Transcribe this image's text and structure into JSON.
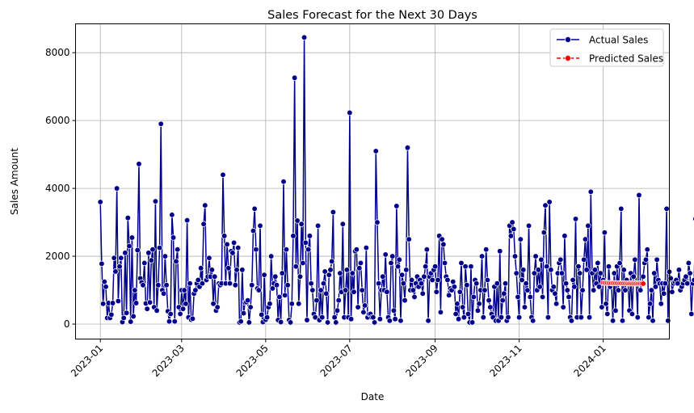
{
  "chart_data": {
    "type": "line",
    "title": "Sales Forecast for the Next 30 Days",
    "xlabel": "Date",
    "ylabel": "Sales Amount",
    "xlim": [
      "2022-12-14",
      "2024-02-18"
    ],
    "ylim": [
      -440,
      8850
    ],
    "grid": true,
    "legend_position": "top-right",
    "x_ticks": [
      "2023-01",
      "2023-03",
      "2023-05",
      "2023-07",
      "2023-09",
      "2023-11",
      "2024-01"
    ],
    "y_ticks": [
      0,
      2000,
      4000,
      6000,
      8000
    ],
    "series": [
      {
        "name": "Actual Sales",
        "color": "#00008b",
        "line_style": "solid",
        "marker": "circle",
        "x_start": "2023-01-01",
        "x_step_days": 1,
        "values": [
          3600,
          1780,
          600,
          1250,
          1100,
          180,
          620,
          180,
          280,
          620,
          1950,
          1550,
          4000,
          680,
          1700,
          1950,
          60,
          180,
          2100,
          330,
          3130,
          2300,
          70,
          2550,
          230,
          1000,
          620,
          2180,
          4720,
          1350,
          1230,
          1150,
          1800,
          610,
          450,
          2100,
          640,
          1880,
          2200,
          500,
          3620,
          400,
          1150,
          2250,
          5900,
          1000,
          900,
          2000,
          1150,
          380,
          80,
          300,
          3220,
          2550,
          80,
          1850,
          2200,
          500,
          300,
          1000,
          450,
          1000,
          600,
          3060,
          200,
          1200,
          130,
          160,
          900,
          1000,
          1200,
          1300,
          1100,
          1650,
          1200,
          2950,
          3500,
          1300,
          1400,
          1950,
          1400,
          1600,
          600,
          1400,
          400,
          500,
          1200,
          1150,
          1200,
          4400,
          2600,
          1200,
          2350,
          1650,
          1200,
          2150,
          2100,
          2400,
          1150,
          1600,
          2250,
          50,
          80,
          1600,
          320,
          630,
          650,
          700,
          50,
          500,
          1150,
          2750,
          3400,
          2200,
          1050,
          1000,
          2900,
          280,
          60,
          1450,
          130,
          200,
          500,
          600,
          2000,
          1050,
          1200,
          1400,
          1150,
          120,
          800,
          60,
          1500,
          4200,
          850,
          2200,
          1150,
          120,
          50,
          600,
          2600,
          7260,
          1700,
          3050,
          600,
          1400,
          2950,
          1800,
          8450,
          2400,
          120,
          2200,
          2600,
          1200,
          1000,
          300,
          200,
          700,
          2900,
          120,
          1000,
          200,
          1200,
          1550,
          900,
          50,
          1450,
          1600,
          1850,
          3300,
          200,
          50,
          400,
          700,
          1500,
          950,
          2950,
          200,
          1000,
          1600,
          200,
          6230,
          150,
          1500,
          950,
          2150,
          2200,
          500,
          1650,
          1800,
          1000,
          350,
          550,
          2250,
          200,
          300,
          300,
          200,
          200,
          50,
          5100,
          3000,
          1200,
          150,
          1000,
          1400,
          1000,
          2050,
          950,
          200,
          100,
          1800,
          2000,
          400,
          150,
          3480,
          1700,
          1900,
          100,
          1450,
          1200,
          700,
          1600,
          5200,
          2500,
          1000,
          1300,
          1000,
          800,
          1200,
          1400,
          1100,
          1300,
          1200,
          900,
          1400,
          1700,
          2200,
          100,
          1400,
          1500,
          1300,
          1600,
          1700,
          950,
          1300,
          2600,
          350,
          2500,
          2350,
          1800,
          1400,
          1300,
          850,
          1050,
          1000,
          1250,
          1100,
          300,
          600,
          150,
          950,
          1800,
          500,
          200,
          1700,
          1150,
          300,
          50,
          1700,
          50,
          800,
          1300,
          1200,
          400,
          600,
          1000,
          2000,
          200,
          1000,
          2200,
          1300,
          700,
          500,
          300,
          200,
          1100,
          100,
          1200,
          100,
          2150,
          200,
          700,
          900,
          1200,
          100,
          200,
          2900,
          2600,
          3000,
          2800,
          2000,
          1500,
          800,
          200,
          2500,
          1300,
          1600,
          500,
          1200,
          1000,
          2900,
          800,
          200,
          100,
          1500,
          2000,
          1000,
          1600,
          1100,
          1900,
          800,
          2700,
          3500,
          1700,
          200,
          3600,
          1600,
          1000,
          1100,
          900,
          600,
          1500,
          1800,
          1900,
          1500,
          500,
          2600,
          1200,
          1000,
          800,
          200,
          100,
          1300,
          1100,
          3100,
          200,
          1700,
          1500,
          200,
          1000,
          1900,
          2500,
          1600,
          2900,
          200,
          3900,
          1500,
          1000,
          1600,
          1200,
          1800,
          1100,
          1500,
          500,
          1300,
          2700,
          600,
          300,
          1700,
          1100,
          1200,
          100,
          1500,
          400,
          1700,
          1000,
          1800,
          3400,
          100,
          1600,
          1000,
          1300,
          1200,
          400,
          1500,
          300,
          1400,
          1900,
          1200,
          200,
          3800,
          1000,
          1200,
          1400,
          1800,
          1900,
          2200,
          200,
          600,
          1000,
          100,
          1500,
          1100,
          1900,
          1300,
          1200,
          600,
          1200,
          900,
          1200,
          3400,
          100,
          1540,
          1350,
          950,
          1200,
          1250,
          1300,
          1200,
          1600,
          1000,
          1100,
          1200,
          1300,
          1400,
          1200,
          1800,
          1500,
          300,
          1200,
          1300,
          3100,
          1100,
          1500
        ]
      },
      {
        "name": "Predicted Sales",
        "color": "#ff0000",
        "line_style": "dashed",
        "marker": "circle",
        "x_start": "2024-01-01",
        "x_step_days": 1,
        "values": [
          1220,
          1218,
          1216,
          1214,
          1212,
          1210,
          1209,
          1208,
          1207,
          1206,
          1205,
          1204,
          1203,
          1203,
          1202,
          1202,
          1201,
          1201,
          1200,
          1200,
          1199,
          1199,
          1198,
          1198,
          1197,
          1197,
          1196,
          1196,
          1195,
          1194
        ]
      }
    ]
  }
}
